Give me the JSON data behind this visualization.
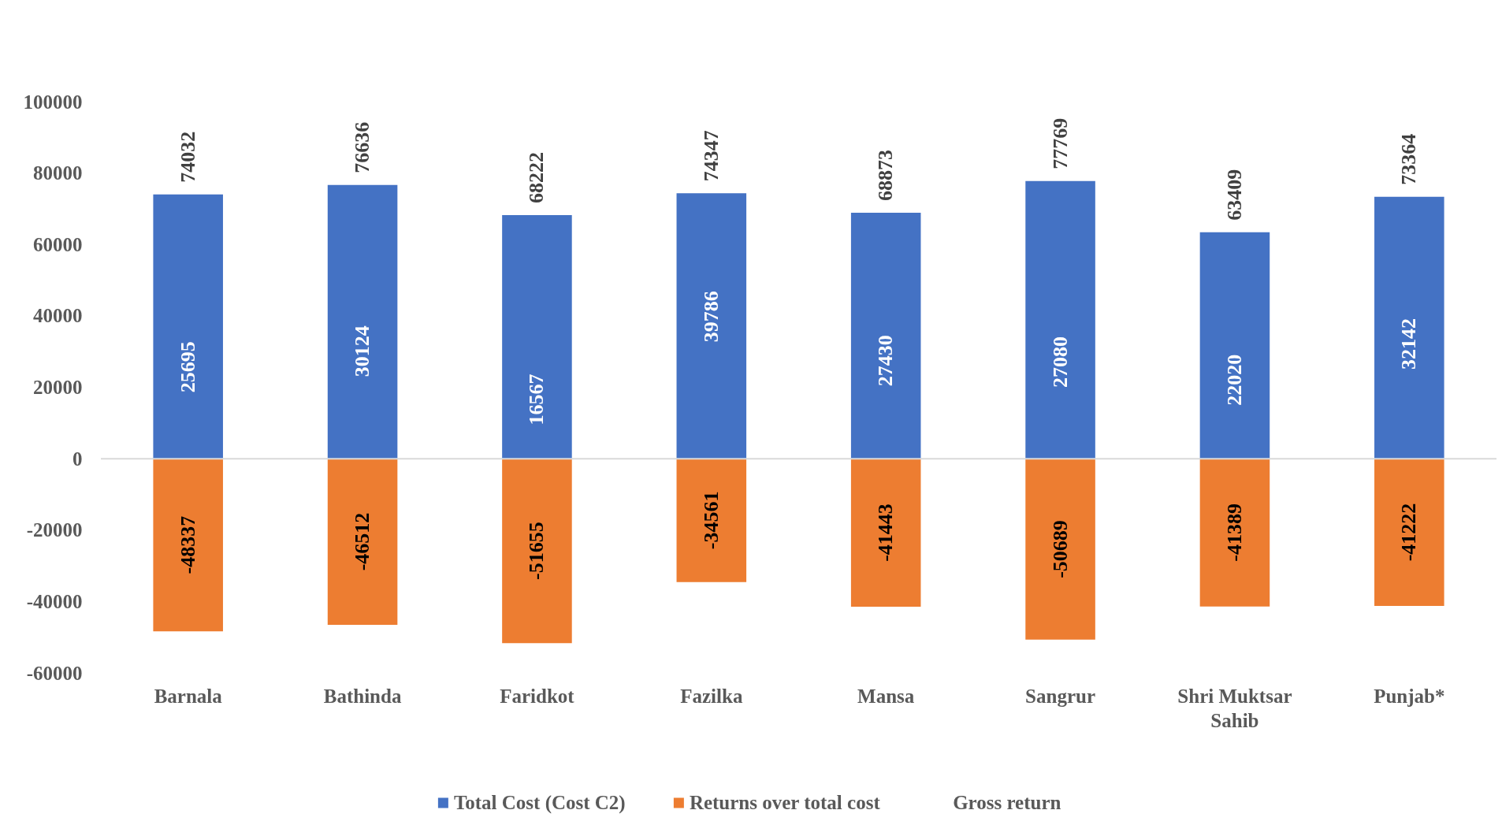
{
  "chart_data": {
    "type": "bar",
    "stacked": true,
    "categories": [
      "Barnala",
      "Bathinda",
      "Faridkot",
      "Fazilka",
      "Mansa",
      "Sangrur",
      "Shri Muktsar Sahib",
      "Punjab*"
    ],
    "series": [
      {
        "name": "Total Cost (Cost C2)",
        "color": "#4472c4",
        "values": [
          74032,
          76636,
          68222,
          74347,
          68873,
          77769,
          63409,
          73364
        ]
      },
      {
        "name": "Returns over total cost",
        "color": "#ed7d31",
        "values": [
          -48337,
          -46512,
          -51655,
          -34561,
          -41443,
          -50689,
          -41389,
          -41222
        ]
      }
    ],
    "totals": [
      "25695",
      "30124",
      "16567",
      "39786",
      "27430",
      "27080",
      "22020",
      "32142"
    ],
    "annotations": [
      "Gross return"
    ],
    "ylim": [
      -60000,
      100000
    ],
    "yticks": [
      -60000,
      -40000,
      -20000,
      0,
      20000,
      40000,
      60000,
      80000,
      100000
    ],
    "grid": false,
    "data_labels": true,
    "legend": "bottom",
    "ref_lines": [
      {
        "axis": "y",
        "value": 0,
        "color": "#d9d9d9"
      }
    ]
  }
}
